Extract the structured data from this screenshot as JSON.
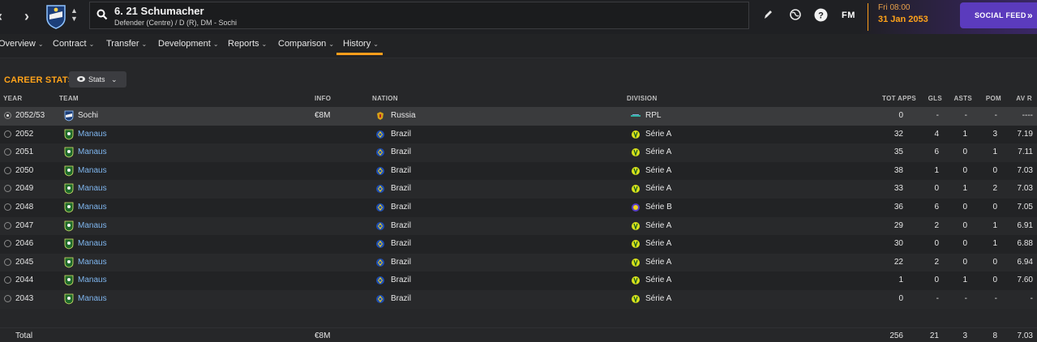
{
  "header": {
    "player_name": "6. 21 Schumacher",
    "player_subtitle": "Defender (Centre) / D (R), DM - Sochi",
    "fm_logo": "FM",
    "date_day": "Fri 08:00",
    "date_date": "31 Jan 2053",
    "social_feed_label": "SOCIAL FEED",
    "accent_color": "#ffa31a",
    "social_color": "#5b3bbd"
  },
  "tabs": [
    {
      "label": "Overview"
    },
    {
      "label": "Contract"
    },
    {
      "label": "Transfer"
    },
    {
      "label": "Development"
    },
    {
      "label": "Reports"
    },
    {
      "label": "Comparison"
    },
    {
      "label": "History"
    }
  ],
  "active_tab": "History",
  "career": {
    "title": "CAREER STATS",
    "stats_button_label": "Stats",
    "columns": {
      "year": "YEAR",
      "team": "TEAM",
      "info": "INFO",
      "nation": "NATION",
      "division": "DIVISION",
      "apps": "TOT APPS",
      "gls": "GLS",
      "asts": "ASTS",
      "pom": "POM",
      "avr": "AV R"
    },
    "rows": [
      {
        "year": "2052/53",
        "team": "Sochi",
        "info": "€8M",
        "nation": "Russia",
        "division": "RPL",
        "apps": "0",
        "gls": "-",
        "asts": "-",
        "pom": "-",
        "avr": "----"
      },
      {
        "year": "2052",
        "team": "Manaus",
        "info": "",
        "nation": "Brazil",
        "division": "Série A",
        "apps": "32",
        "gls": "4",
        "asts": "1",
        "pom": "3",
        "avr": "7.19"
      },
      {
        "year": "2051",
        "team": "Manaus",
        "info": "",
        "nation": "Brazil",
        "division": "Série A",
        "apps": "35",
        "gls": "6",
        "asts": "0",
        "pom": "1",
        "avr": "7.11"
      },
      {
        "year": "2050",
        "team": "Manaus",
        "info": "",
        "nation": "Brazil",
        "division": "Série A",
        "apps": "38",
        "gls": "1",
        "asts": "0",
        "pom": "0",
        "avr": "7.03"
      },
      {
        "year": "2049",
        "team": "Manaus",
        "info": "",
        "nation": "Brazil",
        "division": "Série A",
        "apps": "33",
        "gls": "0",
        "asts": "1",
        "pom": "2",
        "avr": "7.03"
      },
      {
        "year": "2048",
        "team": "Manaus",
        "info": "",
        "nation": "Brazil",
        "division": "Série B",
        "apps": "36",
        "gls": "6",
        "asts": "0",
        "pom": "0",
        "avr": "7.05"
      },
      {
        "year": "2047",
        "team": "Manaus",
        "info": "",
        "nation": "Brazil",
        "division": "Série A",
        "apps": "29",
        "gls": "2",
        "asts": "0",
        "pom": "1",
        "avr": "6.91"
      },
      {
        "year": "2046",
        "team": "Manaus",
        "info": "",
        "nation": "Brazil",
        "division": "Série A",
        "apps": "30",
        "gls": "0",
        "asts": "0",
        "pom": "1",
        "avr": "6.88"
      },
      {
        "year": "2045",
        "team": "Manaus",
        "info": "",
        "nation": "Brazil",
        "division": "Série A",
        "apps": "22",
        "gls": "2",
        "asts": "0",
        "pom": "0",
        "avr": "6.94"
      },
      {
        "year": "2044",
        "team": "Manaus",
        "info": "",
        "nation": "Brazil",
        "division": "Série A",
        "apps": "1",
        "gls": "0",
        "asts": "1",
        "pom": "0",
        "avr": "7.60"
      },
      {
        "year": "2043",
        "team": "Manaus",
        "info": "",
        "nation": "Brazil",
        "division": "Série A",
        "apps": "0",
        "gls": "-",
        "asts": "-",
        "pom": "-",
        "avr": "-"
      }
    ],
    "total": {
      "label": "Total",
      "info": "€8M",
      "apps": "256",
      "gls": "21",
      "asts": "3",
      "pom": "8",
      "avr": "7.03"
    }
  }
}
